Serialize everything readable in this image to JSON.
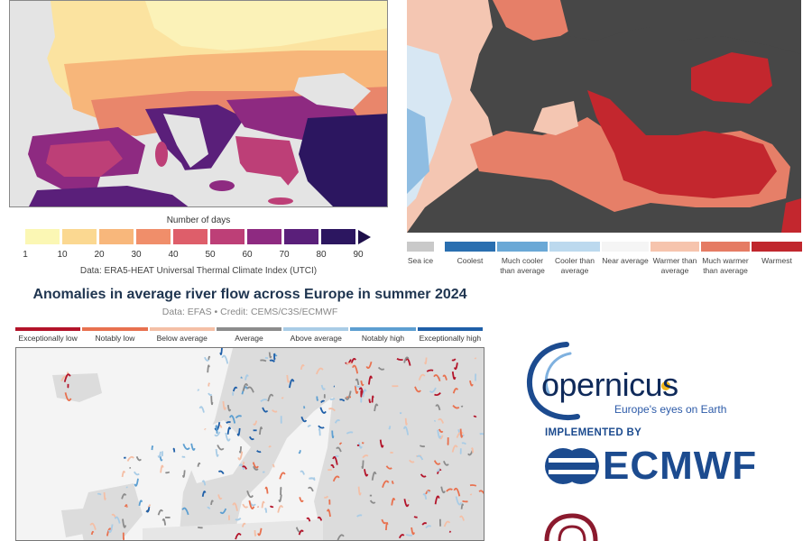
{
  "heat_legend": {
    "title": "Number of days",
    "ticks": [
      "1",
      "10",
      "20",
      "30",
      "40",
      "50",
      "60",
      "70",
      "80",
      "90"
    ],
    "colors": [
      "#fbf7b4",
      "#fbd891",
      "#f8b77b",
      "#f08e6a",
      "#de5e6a",
      "#bd3f77",
      "#8e2a81",
      "#5a1f7a",
      "#2c1660"
    ],
    "source": "Data: ERA5-HEAT Universal Thermal Climate Index (UTCI)"
  },
  "sst_legend": {
    "items": [
      {
        "label": "Sea ice",
        "color": "#c9c9c9"
      },
      {
        "label": "Coolest",
        "color": "#2a6fb0"
      },
      {
        "label": "Much cooler than average",
        "color": "#6aa8d6"
      },
      {
        "label": "Cooler than average",
        "color": "#bcd9ee"
      },
      {
        "label": "Near average",
        "color": "#f5f5f5"
      },
      {
        "label": "Warmer than average",
        "color": "#f6c4ad"
      },
      {
        "label": "Much warmer than average",
        "color": "#e57b63"
      },
      {
        "label": "Warmest",
        "color": "#c0272d"
      }
    ]
  },
  "river": {
    "title": "Anomalies in average river flow across Europe in summer 2024",
    "subtitle": "Data: EFAS • Credit: CEMS/C3S/ECMWF",
    "legend": [
      {
        "label": "Exceptionally low",
        "color": "#b3142a"
      },
      {
        "label": "Notably low",
        "color": "#e8714f"
      },
      {
        "label": "Below average",
        "color": "#f4bfa6"
      },
      {
        "label": "Average",
        "color": "#8c8c8c"
      },
      {
        "label": "Above average",
        "color": "#a9cce6"
      },
      {
        "label": "Notably high",
        "color": "#5d9fd1"
      },
      {
        "label": "Exceptionally high",
        "color": "#1f5fa8"
      }
    ]
  },
  "logos": {
    "copernicus_word": "opernicus",
    "copernicus_tagline": "Europe's eyes on Earth",
    "implemented_by": "IMPLEMENTED BY",
    "ecmwf": "ECMWF"
  }
}
